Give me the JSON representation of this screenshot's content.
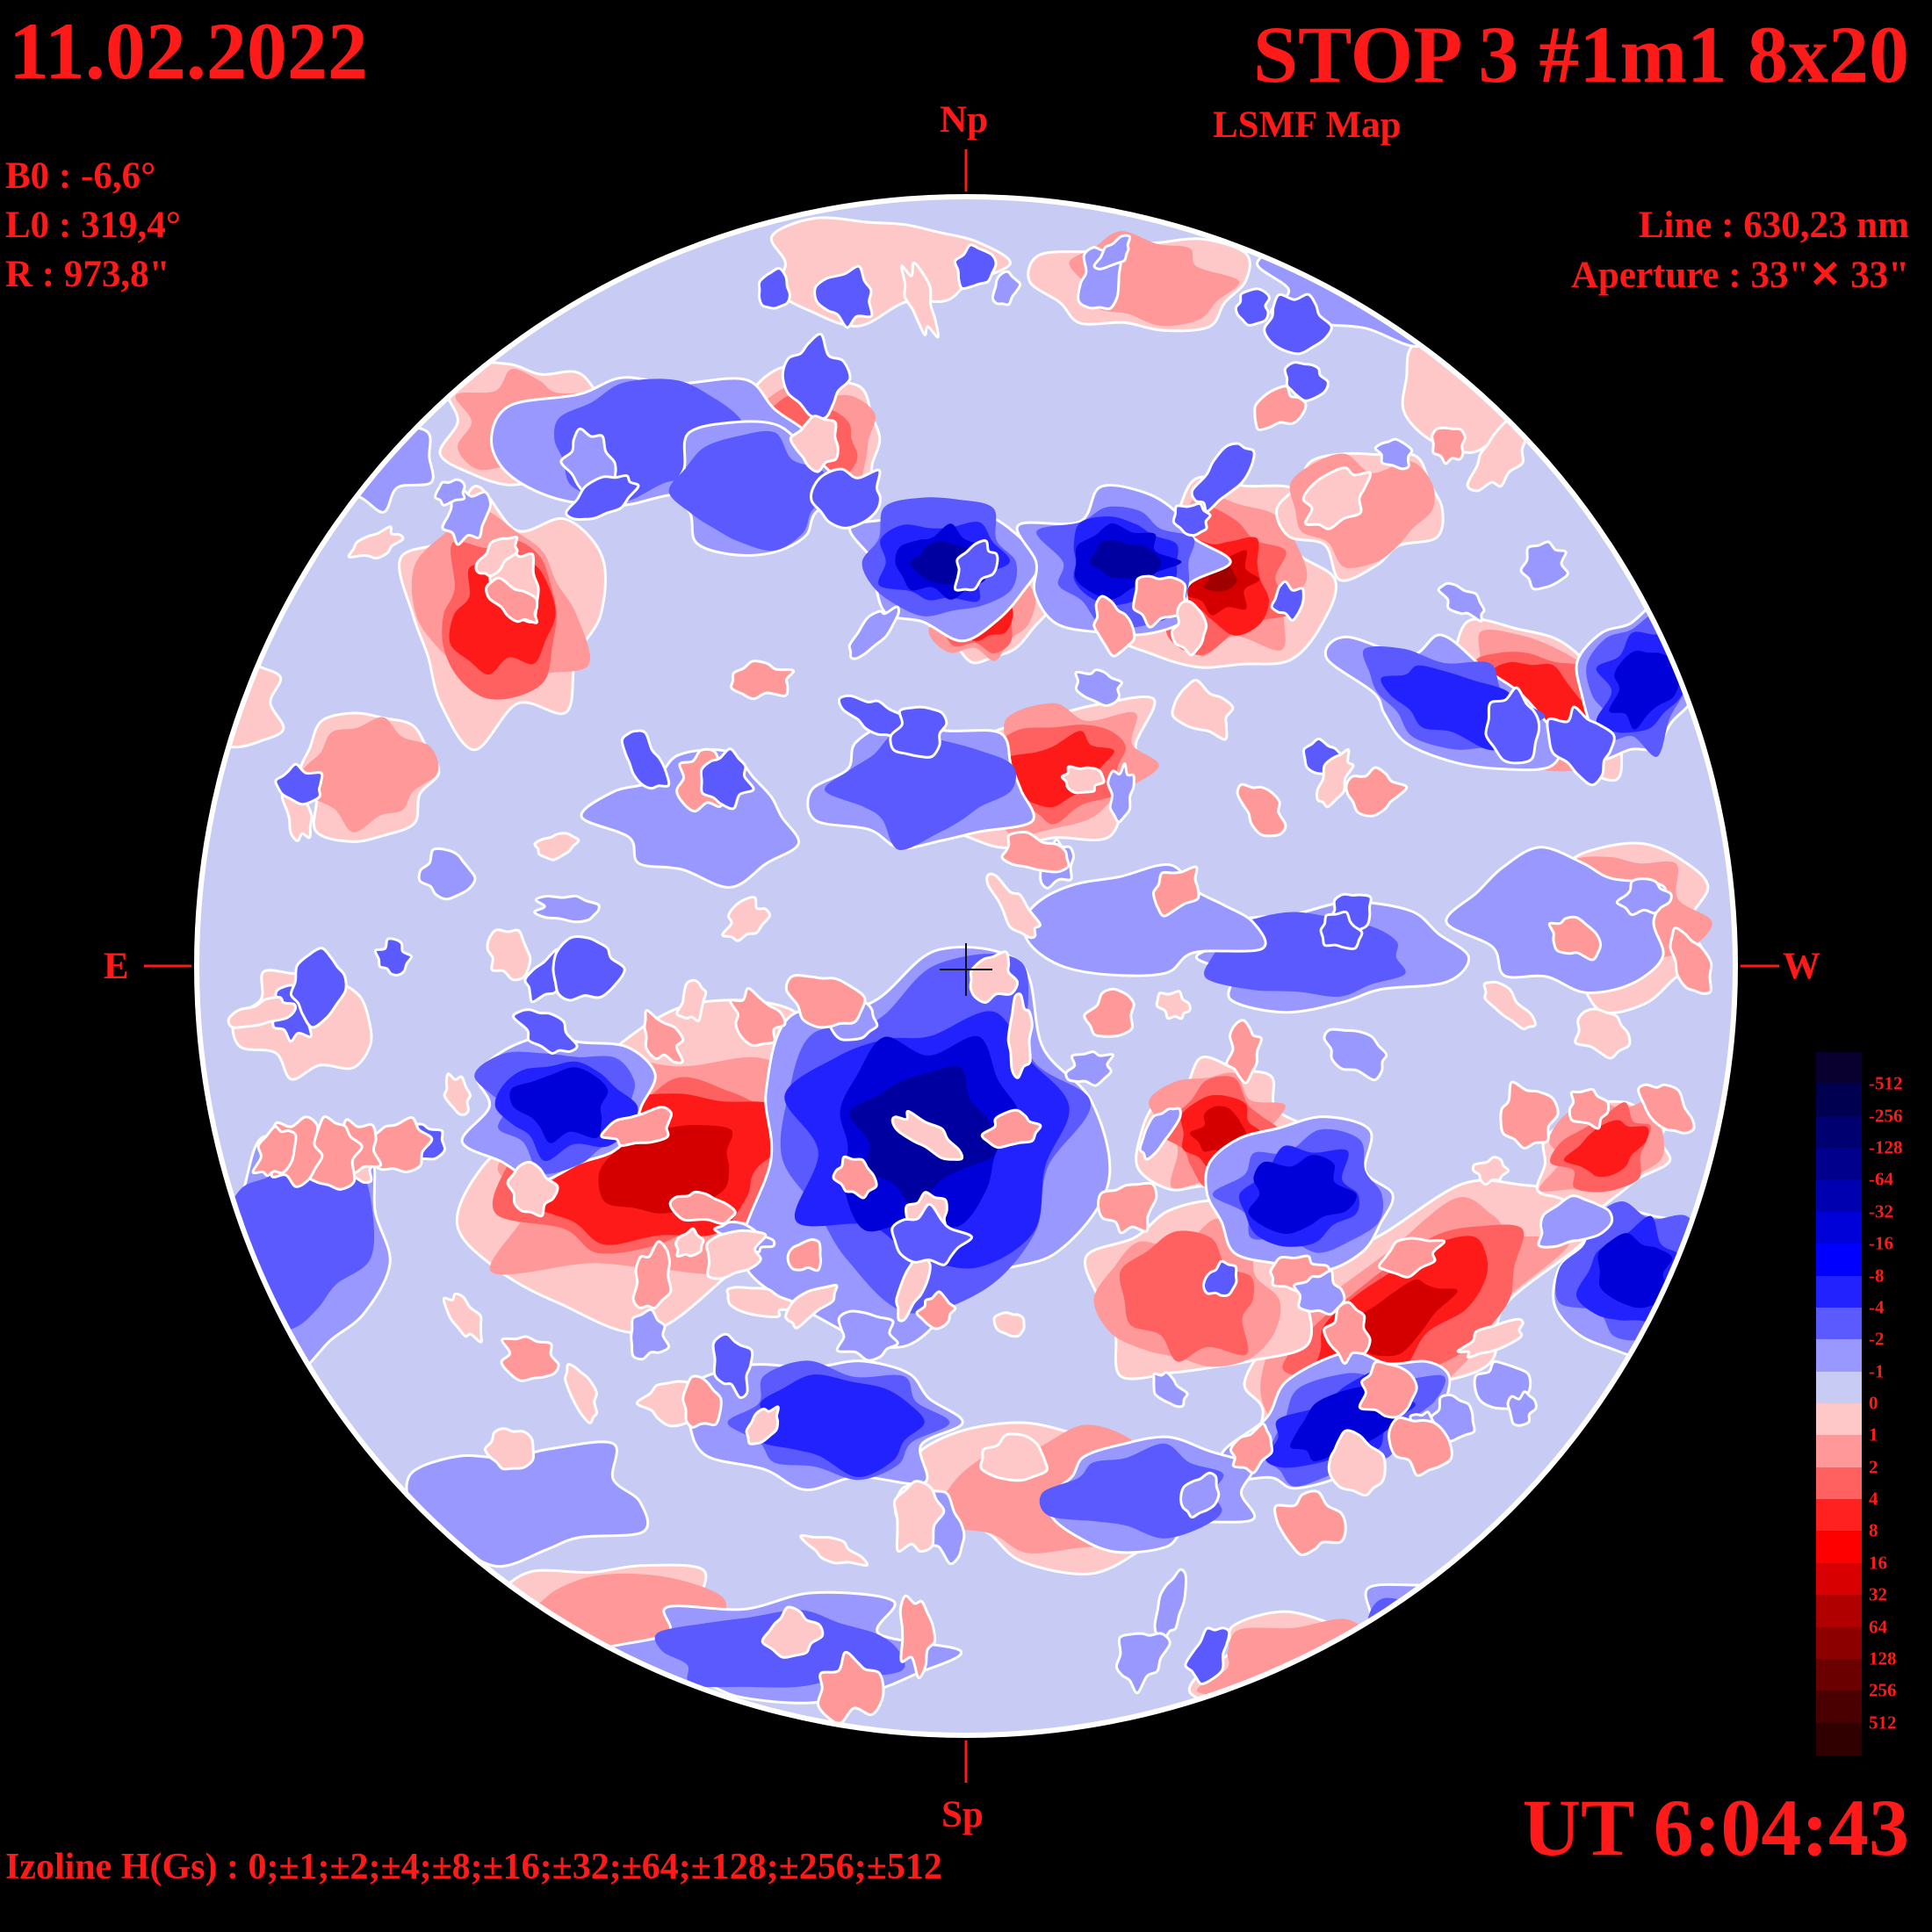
{
  "header": {
    "date": "11.02.2022",
    "title": "STOP 3 #1m1 8x20",
    "subtitle": "LSMF  Map"
  },
  "ephemeris": {
    "b0": "B0 : -6,6°",
    "l0": "L0 : 319,4°",
    "r": "R  : 973,8\""
  },
  "instrument": {
    "line": "Line :  630,23 nm",
    "aperture": "Aperture : 33\"✕ 33\""
  },
  "compass": {
    "north": "Np",
    "south": "Sp",
    "east": "E",
    "west": "W"
  },
  "time": "UT 6:04:43",
  "izoline": "Izoline H(Gs) : 0;±1;±2;±4;±8;±16;±32;±64;±128;±256;±512",
  "legend": {
    "labels": [
      "-512",
      "-256",
      "-128",
      "-64",
      "-32",
      "-16",
      "-8",
      "-4",
      "-2",
      "-1",
      "0",
      "1",
      "2",
      "4",
      "8",
      "16",
      "32",
      "64",
      "128",
      "256",
      "512"
    ],
    "colors": [
      "#0a0030",
      "#000050",
      "#000070",
      "#00008c",
      "#0000b0",
      "#0000d8",
      "#0000ff",
      "#2222ff",
      "#5a5aff",
      "#9898ff",
      "#c8ccf4",
      "#ffc8c8",
      "#ff9898",
      "#ff6060",
      "#ff2020",
      "#ff0000",
      "#d80000",
      "#b00000",
      "#8c0000",
      "#6a0000",
      "#4a0000",
      "#300000"
    ]
  },
  "map_colors": {
    "background": "#c8ccf4",
    "pos": [
      "#ffc8c8",
      "#ff9898",
      "#ff6060",
      "#ff1a1a",
      "#d40000",
      "#a00000",
      "#6a0000"
    ],
    "neg": [
      "#9898ff",
      "#5a5aff",
      "#2222ff",
      "#0000d8",
      "#0000a0",
      "#000060"
    ],
    "isoline": "#ffffff",
    "text": "#ff1a1a"
  }
}
